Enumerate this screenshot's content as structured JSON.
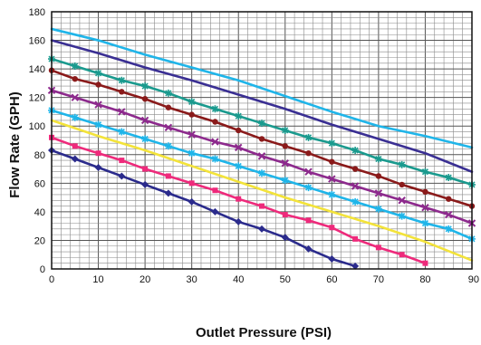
{
  "chart_data": {
    "type": "line",
    "title": "",
    "xlabel": "Outlet Pressure (PSI)",
    "ylabel": "Flow Rate (GPH)",
    "xlim": [
      0,
      90
    ],
    "ylim": [
      0,
      180
    ],
    "x_ticks": [
      "0",
      "10",
      "20",
      "30",
      "40",
      "50",
      "60",
      "70",
      "80",
      "90"
    ],
    "y_ticks": [
      "0",
      "20",
      "40",
      "60",
      "80",
      "100",
      "120",
      "140",
      "160",
      "180"
    ],
    "grid": true,
    "legend": "none",
    "series": [
      {
        "color": "#1fb5e9",
        "marker": "none",
        "x": [
          0,
          10,
          20,
          30,
          40,
          50,
          60,
          70,
          80,
          90
        ],
        "y": [
          168,
          160,
          150,
          141,
          132,
          121,
          110,
          100,
          93,
          85
        ]
      },
      {
        "color": "#3a2f93",
        "marker": "none",
        "x": [
          0,
          10,
          20,
          30,
          40,
          50,
          60,
          70,
          80,
          90
        ],
        "y": [
          160,
          151,
          141,
          132,
          122,
          112,
          101,
          91,
          81,
          68
        ]
      },
      {
        "color": "#1a9a8e",
        "marker": "star",
        "x": [
          0,
          5,
          10,
          15,
          20,
          25,
          30,
          35,
          40,
          45,
          50,
          55,
          60,
          65,
          70,
          75,
          80,
          85,
          90
        ],
        "y": [
          147,
          142,
          137,
          132,
          128,
          123,
          117,
          112,
          107,
          102,
          97,
          92,
          88,
          83,
          77,
          73,
          68,
          64,
          59
        ]
      },
      {
        "color": "#8a1a1a",
        "marker": "circle",
        "x": [
          0,
          5,
          10,
          15,
          20,
          25,
          30,
          35,
          40,
          45,
          50,
          55,
          60,
          65,
          70,
          75,
          80,
          85,
          90
        ],
        "y": [
          139,
          133,
          129,
          124,
          119,
          113,
          108,
          103,
          97,
          91,
          86,
          81,
          75,
          70,
          65,
          59,
          54,
          49,
          44
        ]
      },
      {
        "color": "#8d2a8d",
        "marker": "x",
        "x": [
          0,
          5,
          10,
          15,
          20,
          25,
          30,
          35,
          40,
          45,
          50,
          55,
          60,
          65,
          70,
          75,
          80,
          85,
          90
        ],
        "y": [
          125,
          120,
          115,
          110,
          104,
          99,
          94,
          89,
          85,
          79,
          74,
          68,
          63,
          58,
          53,
          48,
          43,
          38,
          32
        ]
      },
      {
        "color": "#1fb5e9",
        "marker": "star",
        "x": [
          0,
          5,
          10,
          15,
          20,
          25,
          30,
          35,
          40,
          45,
          50,
          55,
          60,
          65,
          70,
          75,
          80,
          85,
          90
        ],
        "y": [
          111,
          106,
          101,
          96,
          91,
          86,
          81,
          77,
          72,
          67,
          62,
          57,
          52,
          47,
          42,
          37,
          32,
          28,
          21
        ]
      },
      {
        "color": "#f3e33a",
        "marker": "none",
        "x": [
          0,
          10,
          20,
          30,
          40,
          50,
          60,
          70,
          80,
          90
        ],
        "y": [
          104,
          93,
          83,
          72,
          61,
          50,
          40,
          30,
          19,
          6
        ]
      },
      {
        "color": "#ee2a7b",
        "marker": "square",
        "x": [
          0,
          5,
          10,
          15,
          20,
          25,
          30,
          35,
          40,
          45,
          50,
          55,
          60,
          65,
          70,
          75,
          80
        ],
        "y": [
          92,
          86,
          81,
          76,
          70,
          65,
          60,
          55,
          49,
          44,
          38,
          34,
          29,
          21,
          15,
          10,
          4
        ]
      },
      {
        "color": "#2b2b8c",
        "marker": "diamond",
        "x": [
          0,
          5,
          10,
          15,
          20,
          25,
          30,
          35,
          40,
          45,
          50,
          55,
          60,
          65
        ],
        "y": [
          83,
          77,
          71,
          65,
          59,
          53,
          47,
          40,
          33,
          28,
          22,
          14,
          7,
          2
        ]
      }
    ]
  }
}
